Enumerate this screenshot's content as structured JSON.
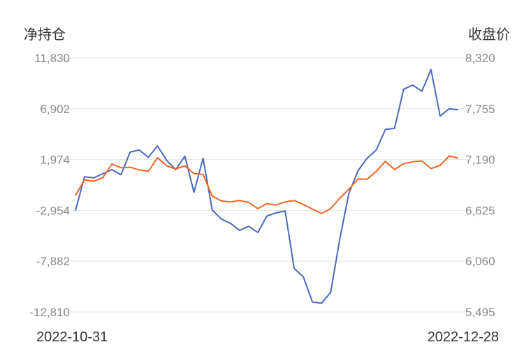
{
  "chart_data": {
    "type": "line",
    "left_axis": {
      "title": "净持仓",
      "ticks": [
        "11,830",
        "6,902",
        "1,974",
        "-2,954",
        "-7,882",
        "-12,810"
      ],
      "range": [
        -12810,
        11830
      ]
    },
    "right_axis": {
      "title": "收盘价",
      "ticks": [
        "8,320",
        "7,755",
        "7,190",
        "6,625",
        "6,060",
        "5,495"
      ],
      "range": [
        5495,
        8320
      ]
    },
    "x_start_label": "2022-10-31",
    "x_end_label": "2022-12-28",
    "grid": true,
    "colors": {
      "net_position": "#4a68c0",
      "close_price": "#f26522"
    },
    "series": [
      {
        "axis": "left",
        "color_key": "net_position",
        "values": [
          -2970,
          300,
          200,
          600,
          1000,
          500,
          2700,
          2900,
          2200,
          3300,
          1900,
          1000,
          2300,
          -1200,
          2100,
          -2900,
          -3800,
          -4200,
          -4900,
          -4500,
          -5100,
          -3500,
          -3200,
          -3000,
          -8600,
          -9400,
          -11850,
          -11950,
          -10900,
          -5700,
          -1300,
          900,
          2100,
          2900,
          4900,
          5000,
          8800,
          9200,
          8600,
          10700,
          6200,
          6900,
          6800
        ]
      },
      {
        "axis": "right",
        "color_key": "close_price",
        "values": [
          6790,
          6965,
          6950,
          6990,
          7140,
          7100,
          7105,
          7075,
          7060,
          7210,
          7120,
          7085,
          7120,
          7035,
          7025,
          6785,
          6730,
          6720,
          6735,
          6715,
          6645,
          6700,
          6685,
          6720,
          6735,
          6690,
          6640,
          6590,
          6645,
          6760,
          6860,
          6975,
          6970,
          7060,
          7170,
          7080,
          7145,
          7165,
          7175,
          7090,
          7125,
          7230,
          7205
        ]
      }
    ]
  }
}
